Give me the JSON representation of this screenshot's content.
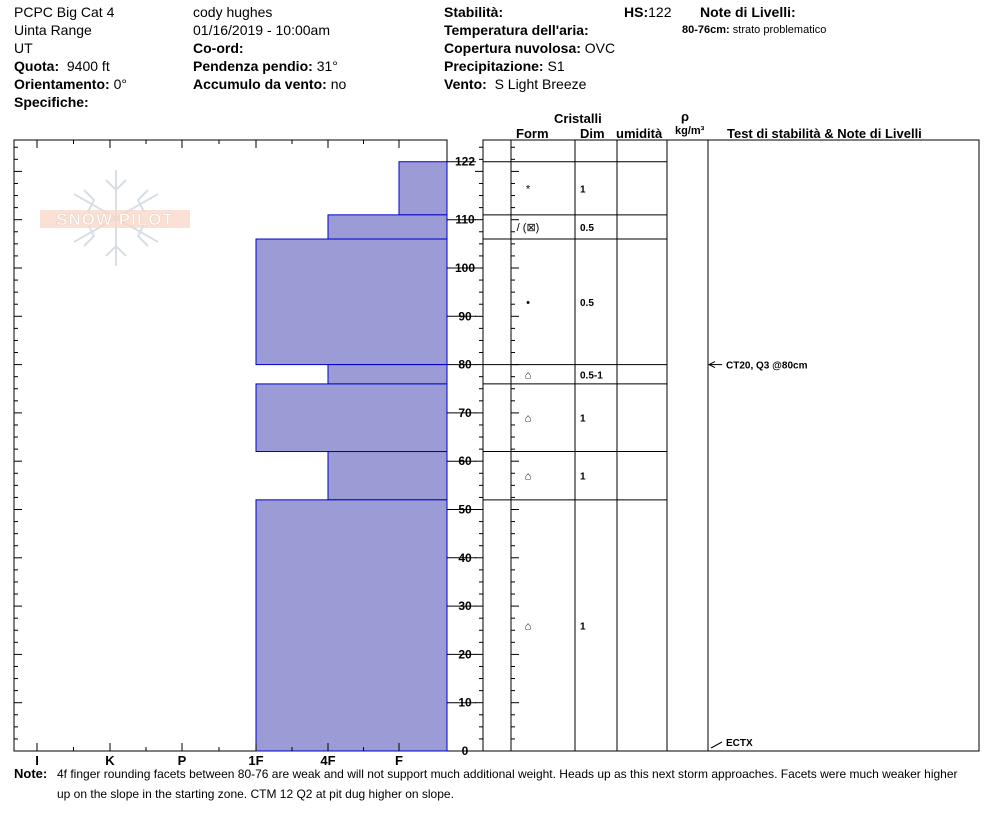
{
  "header": {
    "site": "PCPC Big Cat 4",
    "range": "Uinta Range",
    "state": "UT",
    "elevation_label": "Quota:",
    "elevation": "9400 ft",
    "aspect_label": "Orientamento:",
    "aspect": "0°",
    "specifics_label": "Specifiche:",
    "observer": "cody hughes",
    "datetime": "01/16/2019 - 10:00am",
    "coords_label": "Co-ord:",
    "slope_label": "Pendenza pendio:",
    "slope": "31°",
    "wind_loading_label": "Accumulo da vento:",
    "wind_loading": "no",
    "stability_label": "Stabilità:",
    "air_temp_label": "Temperatura dell'aria:",
    "cloud_label": "Copertura nuvolosa:",
    "cloud": "OVC",
    "precip_label": "Precipitazione:",
    "precip": "S1",
    "wind_label": "Vento:",
    "wind": "S Light Breeze",
    "hs_label": "HS:",
    "hs": "122",
    "layer_notes_label": "Note di Livelli:",
    "layer_notes_range": "80-76cm:",
    "layer_notes_text": "strato problematico"
  },
  "logo": {
    "text": "SNOW PILOT"
  },
  "columns": {
    "crystals": "Cristalli",
    "form": "Form",
    "dim": "Dim",
    "moisture": "umidità",
    "rho": "ρ",
    "density_unit": "kg/m³",
    "tests": "Test di stabilità & Note di Livelli"
  },
  "chart_data": {
    "type": "bar",
    "orientation": "horizontal",
    "y_axis": {
      "label": "",
      "range": [
        0,
        122
      ],
      "ticks": [
        0,
        10,
        20,
        30,
        40,
        50,
        60,
        70,
        80,
        90,
        100,
        110,
        122
      ]
    },
    "x_axis": {
      "label": "",
      "ticks": [
        "I",
        "K",
        "P",
        "1F",
        "4F",
        "F"
      ],
      "direction": "F at right, I at left"
    },
    "layers": [
      {
        "top": 122,
        "bottom": 111,
        "hardness": "F",
        "form": "*",
        "size": "1"
      },
      {
        "top": 111,
        "bottom": 106,
        "hardness": "4F",
        "form": "/ (⊠)",
        "size": "0.5"
      },
      {
        "top": 106,
        "bottom": 80,
        "hardness": "1F",
        "form": "•",
        "size": "0.5"
      },
      {
        "top": 80,
        "bottom": 76,
        "hardness": "4F",
        "form": "⌂",
        "size": "0.5-1"
      },
      {
        "top": 76,
        "bottom": 62,
        "hardness": "1F",
        "form": "⌂",
        "size": "1"
      },
      {
        "top": 62,
        "bottom": 52,
        "hardness": "4F",
        "form": "⌂",
        "size": "1"
      },
      {
        "top": 52,
        "bottom": 0,
        "hardness": "1F",
        "form": "⌂",
        "size": "1"
      }
    ],
    "tests": [
      {
        "depth": 80,
        "text": "CT20, Q3 @80cm"
      },
      {
        "depth": 0,
        "text": "ECTX"
      }
    ],
    "colors": {
      "bar_fill": "#9b9bd6",
      "bar_stroke": "#0000cc"
    }
  },
  "note": {
    "label": "Note:",
    "line1": "4f finger rounding facets between 80-76 are weak and will not support much additional weight. Heads up as this next storm approaches. Facets were much weaker higher",
    "line2": "up on the slope in the starting zone. CTM 12 Q2 at pit dug higher on slope."
  }
}
